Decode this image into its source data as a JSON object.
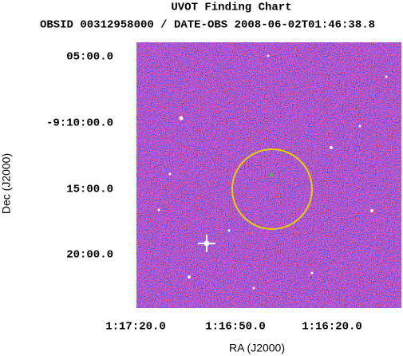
{
  "header": {
    "title": "UVOT Finding Chart",
    "subtitle": "OBSID 00312958000 / DATE-OBS 2008-06-02T01:46:38.8"
  },
  "axes": {
    "x_label": "RA (J2000)",
    "y_label": "Dec (J2000)",
    "x_ticks": [
      "1:17:20.0",
      "1:16:50.0",
      "1:16:20.0"
    ],
    "y_ticks": [
      "05:00.0",
      "-9:10:00.0",
      "15:00.0",
      "20:00.0"
    ]
  }
}
